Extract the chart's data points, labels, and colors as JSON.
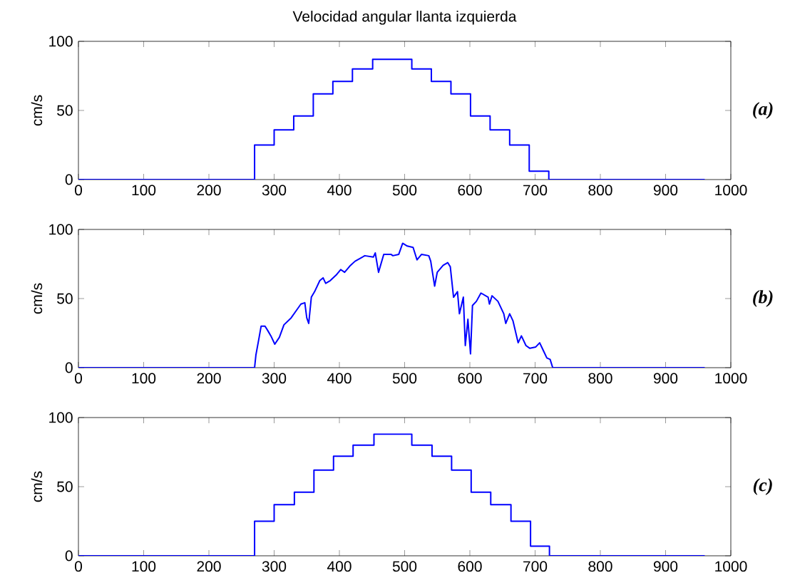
{
  "chart_data": [
    {
      "type": "step",
      "title": "Velocidad angular llanta izquierda",
      "ylabel": "cm/s",
      "annotations": [
        "(a)"
      ],
      "color": "#0000ff",
      "xlim": [
        0,
        1000
      ],
      "ylim": [
        0,
        100
      ],
      "xticks": [
        0,
        100,
        200,
        300,
        400,
        500,
        600,
        700,
        800,
        900,
        1000
      ],
      "yticks": [
        0,
        50,
        100
      ],
      "x": [
        0,
        270,
        300,
        330,
        360,
        390,
        420,
        451,
        511,
        541,
        571,
        601,
        631,
        661,
        691,
        721,
        960
      ],
      "values": [
        0,
        25,
        36,
        46,
        62,
        71,
        80,
        87,
        80,
        71,
        62,
        46,
        36,
        25,
        6,
        0,
        0
      ]
    },
    {
      "type": "line",
      "ylabel": "cm/s",
      "annotations": [
        "(b)"
      ],
      "color": "#0000ff",
      "xlim": [
        0,
        1000
      ],
      "ylim": [
        0,
        100
      ],
      "xticks": [
        0,
        100,
        200,
        300,
        400,
        500,
        600,
        700,
        800,
        900,
        1000
      ],
      "yticks": [
        0,
        50,
        100
      ],
      "x": [
        0,
        270,
        272,
        277,
        280,
        286,
        290,
        295,
        301,
        308,
        315,
        326,
        335,
        341,
        347,
        350,
        353,
        357,
        362,
        370,
        375,
        379,
        386,
        395,
        402,
        408,
        417,
        424,
        439,
        452,
        455,
        460,
        468,
        479,
        482,
        491,
        497,
        504,
        513,
        519,
        526,
        537,
        540,
        546,
        550,
        559,
        566,
        570,
        575,
        581,
        584,
        590,
        593,
        597,
        601,
        604,
        610,
        617,
        628,
        630,
        634,
        643,
        652,
        655,
        661,
        666,
        674,
        679,
        686,
        692,
        701,
        707,
        712,
        718,
        723,
        727,
        960
      ],
      "values": [
        0,
        0,
        9,
        22,
        30,
        30,
        27,
        23,
        17,
        22,
        31,
        36,
        42,
        46,
        47,
        36,
        32,
        51,
        55,
        63,
        65,
        61,
        63,
        67,
        71,
        69,
        74,
        77,
        81,
        80,
        83,
        69,
        82,
        82,
        81,
        82,
        90,
        88,
        87,
        78,
        82,
        81,
        77,
        59,
        69,
        74,
        76,
        73,
        51,
        55,
        39,
        51,
        16,
        35,
        10,
        45,
        48,
        54,
        51,
        46,
        52,
        48,
        39,
        32,
        39,
        34,
        18,
        23,
        16,
        14,
        15,
        18,
        13,
        7,
        6,
        0,
        0
      ]
    },
    {
      "type": "step",
      "ylabel": "cm/s",
      "annotations": [
        "(c)"
      ],
      "color": "#0000ff",
      "xlim": [
        0,
        1000
      ],
      "ylim": [
        0,
        100
      ],
      "xticks": [
        0,
        100,
        200,
        300,
        400,
        500,
        600,
        700,
        800,
        900,
        1000
      ],
      "yticks": [
        0,
        50,
        100
      ],
      "x": [
        0,
        270,
        300,
        331,
        361,
        391,
        421,
        453,
        511,
        542,
        572,
        602,
        632,
        663,
        693,
        722,
        960
      ],
      "values": [
        0,
        25,
        37,
        46,
        62,
        72,
        80,
        88,
        80,
        72,
        62,
        46,
        37,
        25,
        7,
        0,
        0
      ]
    }
  ]
}
